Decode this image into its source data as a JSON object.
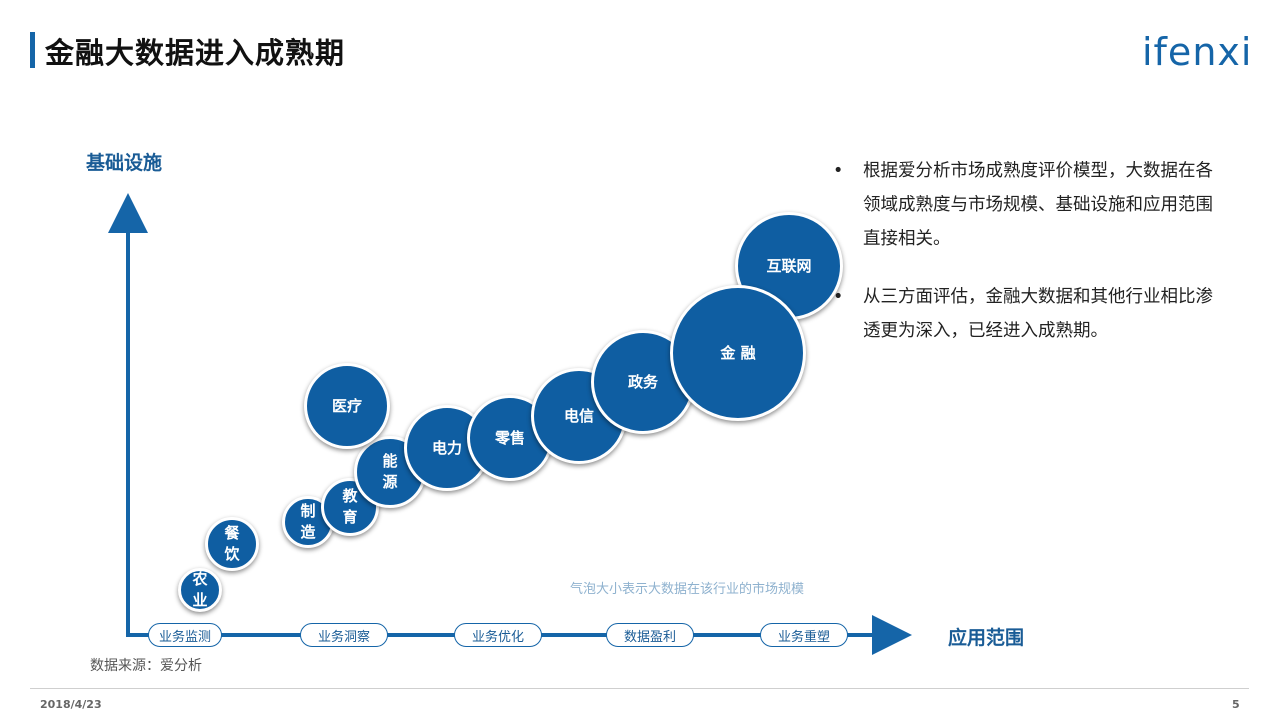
{
  "slide": {
    "title": "金融大数据进入成熟期",
    "logo_text": "ifenxi",
    "date": "2018/4/23",
    "page_number": "5",
    "source": "数据来源：爱分析"
  },
  "chart": {
    "y_axis_label": "基础设施",
    "x_axis_label": "应用范围",
    "stages": [
      "业务监测",
      "业务洞察",
      "业务优化",
      "数据盈利",
      "业务重塑"
    ],
    "note": "气泡大小表示大数据在该行业的市场规模",
    "bubbles": [
      {
        "label": "农\n业",
        "font": 15
      },
      {
        "label": "餐\n饮",
        "font": 15
      },
      {
        "label": "制\n造",
        "font": 15
      },
      {
        "label": "教\n育",
        "font": 15
      },
      {
        "label": "能\n源",
        "font": 15
      },
      {
        "label": "医疗",
        "font": 15
      },
      {
        "label": "电力",
        "font": 15
      },
      {
        "label": "零售",
        "font": 15
      },
      {
        "label": "电信",
        "font": 15
      },
      {
        "label": "政务",
        "font": 15
      },
      {
        "label": "互联网",
        "font": 15
      },
      {
        "label": "金 融",
        "font": 15
      }
    ],
    "bubble_color": "#0f5ea2",
    "axis_color": "#1565a8"
  },
  "bullets": [
    "根据爱分析市场成熟度评价模型，大数据在各领域成熟度与市场规模、基础设施和应用范围直接相关。",
    "从三方面评估，金融大数据和其他行业相比渗透更为深入，已经进入成熟期。"
  ]
}
